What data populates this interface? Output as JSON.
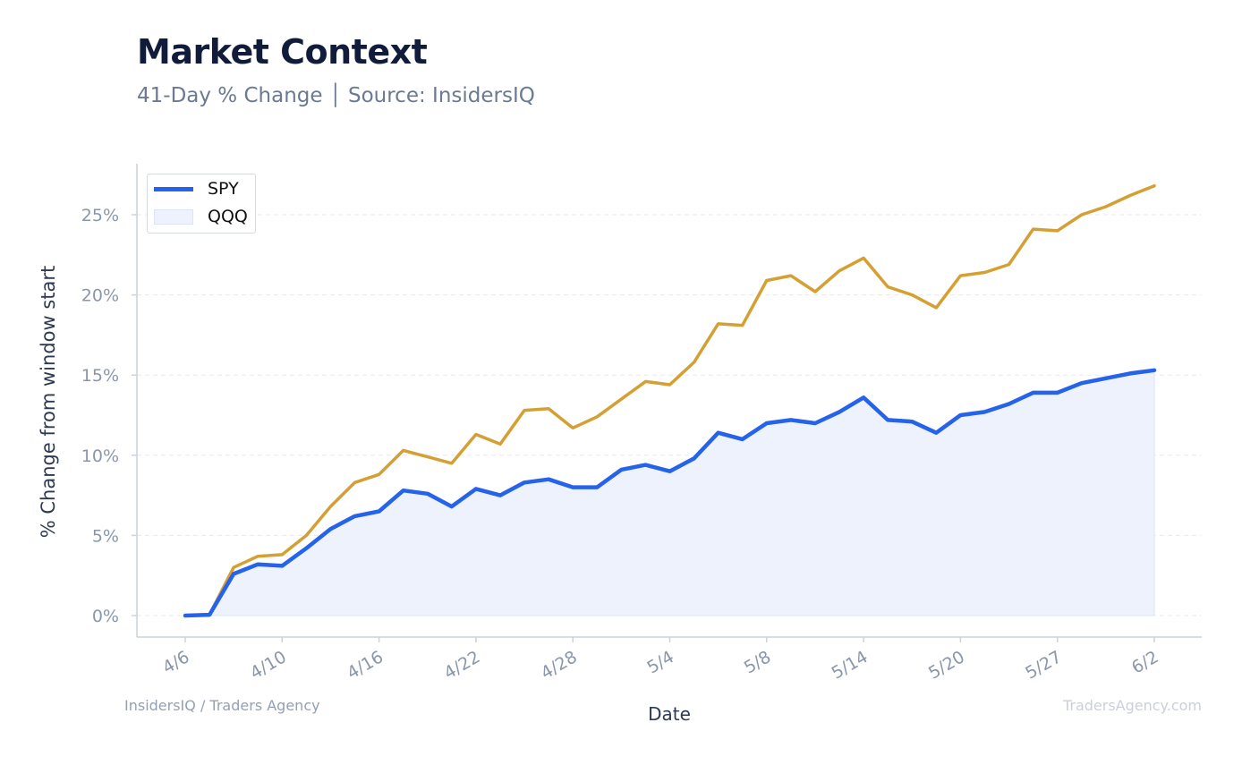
{
  "header": {
    "title": "Market Context",
    "subtitle": "41-Day % Change │ Source: InsidersIQ"
  },
  "footer": {
    "left": "InsidersIQ / Traders Agency",
    "right": "TradersAgency.com"
  },
  "colors": {
    "spy": "#2563eb",
    "qqq": "#d4a033",
    "area_fill": "#eef2fd",
    "grid": "#e6e9ef",
    "axis": "#c9d2de",
    "tick_text": "#8a97ab",
    "axis_label": "#2e3a4f"
  },
  "chart_data": {
    "type": "line",
    "xlabel": "Date",
    "ylabel": "% Change from window start",
    "ylim": [
      -1.3,
      28.5
    ],
    "yticks": [
      0,
      5,
      10,
      15,
      20,
      25
    ],
    "ytick_labels": [
      "0%",
      "5%",
      "10%",
      "15%",
      "20%",
      "25%"
    ],
    "xtick_labels": [
      "4/6",
      "4/10",
      "4/16",
      "4/22",
      "4/28",
      "5/4",
      "5/8",
      "5/14",
      "5/20",
      "5/27",
      "6/2"
    ],
    "xtick_index": [
      0,
      4,
      8,
      12,
      16,
      20,
      24,
      28,
      32,
      36,
      40
    ],
    "grid": true,
    "legend_position": "top-left",
    "legend": [
      "SPY",
      "QQQ"
    ],
    "series": [
      {
        "name": "SPY",
        "style": "line-with-area",
        "values": [
          0,
          0.05,
          2.6,
          3.2,
          3.1,
          4.2,
          5.4,
          6.2,
          6.5,
          7.8,
          7.6,
          6.8,
          7.9,
          7.5,
          8.3,
          8.5,
          8.0,
          8.0,
          9.1,
          9.4,
          9.0,
          9.8,
          11.4,
          11.0,
          12.0,
          12.2,
          12.0,
          12.7,
          13.6,
          12.2,
          12.1,
          11.4,
          12.5,
          12.7,
          13.2,
          13.9,
          13.9,
          14.5,
          14.8,
          15.1,
          15.3
        ]
      },
      {
        "name": "QQQ",
        "style": "line",
        "values": [
          0,
          0.05,
          3.0,
          3.7,
          3.8,
          5.0,
          6.8,
          8.3,
          8.8,
          10.3,
          9.9,
          9.5,
          11.3,
          10.7,
          12.8,
          12.9,
          11.7,
          12.4,
          13.5,
          14.6,
          14.4,
          15.8,
          18.2,
          18.1,
          20.9,
          21.2,
          20.2,
          21.5,
          22.3,
          20.5,
          20.0,
          19.2,
          21.2,
          21.4,
          21.9,
          24.1,
          24.0,
          25.0,
          25.5,
          26.2,
          26.8
        ]
      }
    ]
  }
}
